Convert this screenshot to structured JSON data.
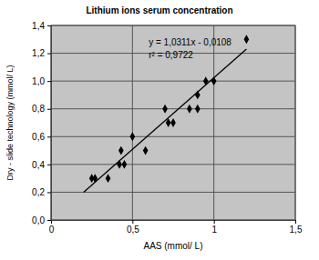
{
  "chart_data": {
    "type": "scatter",
    "title": "Lithium ions serum concentration",
    "x_label": "AAS (mmol/ L)",
    "y_label": "Dry - slide technology (mmol/ L)",
    "annotations": [
      "y = 1,0311x - 0,0108",
      "r² = 0,9722"
    ],
    "series": [
      {
        "type": "scatter",
        "color": "#000000",
        "marker": "diamond",
        "x": [
          0.25,
          0.27,
          0.35,
          0.42,
          0.43,
          0.45,
          0.5,
          0.58,
          0.7,
          0.72,
          0.75,
          0.85,
          0.9,
          0.9,
          0.95,
          1.0,
          1.2
        ],
        "values": [
          0.3,
          0.3,
          0.3,
          0.4,
          0.5,
          0.4,
          0.6,
          0.5,
          0.8,
          0.7,
          0.7,
          0.8,
          0.8,
          0.9,
          1.0,
          1.0,
          1.3
        ]
      },
      {
        "type": "line",
        "color": "#000000",
        "line_style": "solid",
        "x": [
          0.2,
          1.2
        ],
        "values": [
          0.2,
          1.23
        ]
      }
    ],
    "xlim": [
      0,
      1.5
    ],
    "xticks": [
      0,
      {
        "value": 0.5,
        "label": "0,5"
      },
      1,
      {
        "value": 1.5,
        "label": "1,5"
      }
    ],
    "ylim": [
      0,
      1.4
    ],
    "yticks": [
      {
        "value": 0,
        "label": "0,0"
      },
      {
        "value": 0.2,
        "label": "0,2"
      },
      {
        "value": 0.4,
        "label": "0,4"
      },
      {
        "value": 0.6,
        "label": "0,6"
      },
      {
        "value": 0.8,
        "label": "0,8"
      },
      {
        "value": 1.0,
        "label": "1,0"
      },
      {
        "value": 1.2,
        "label": "1,2"
      },
      {
        "value": 1.4,
        "label": "1,4"
      }
    ],
    "grid": true
  }
}
